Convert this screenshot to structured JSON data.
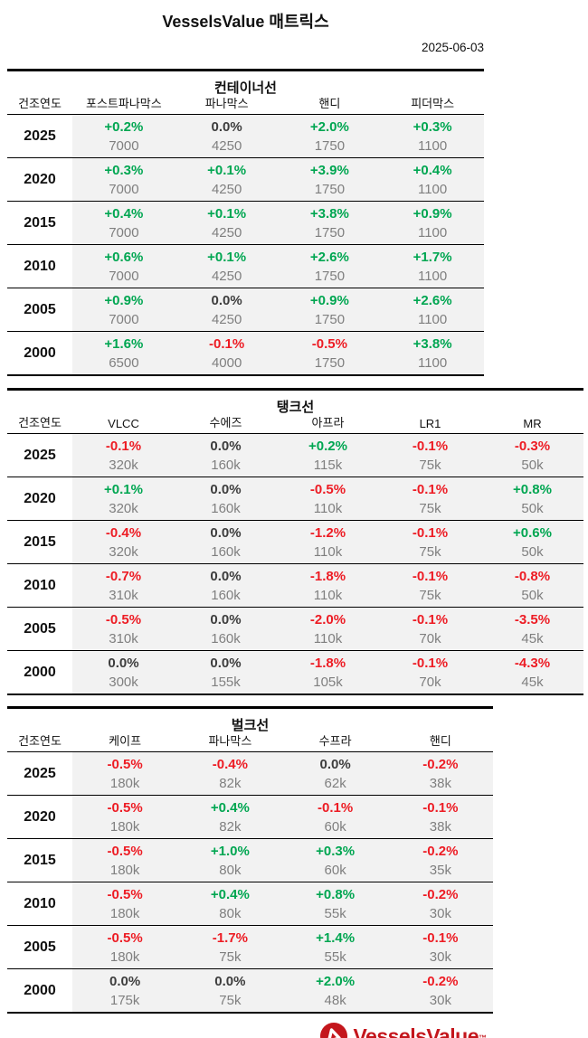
{
  "title": "VesselsValue 매트릭스",
  "date": "2025-06-03",
  "year_header": "건조연도",
  "colors": {
    "positive": "#00a651",
    "negative": "#ed1c24",
    "neutral": "#3d3d3d",
    "value_gray": "#7f7f7f",
    "row_band": "#f2f2f2",
    "brand_red": "#c4161c"
  },
  "sections": [
    {
      "title": "컨테이너선",
      "columns": [
        "포스트파나막스",
        "파나막스",
        "핸디",
        "피더막스"
      ],
      "rows": [
        {
          "year": "2025",
          "cells": [
            {
              "pct": "+0.2%",
              "value": "7000"
            },
            {
              "pct": "0.0%",
              "value": "4250"
            },
            {
              "pct": "+2.0%",
              "value": "1750"
            },
            {
              "pct": "+0.3%",
              "value": "1100"
            }
          ]
        },
        {
          "year": "2020",
          "cells": [
            {
              "pct": "+0.3%",
              "value": "7000"
            },
            {
              "pct": "+0.1%",
              "value": "4250"
            },
            {
              "pct": "+3.9%",
              "value": "1750"
            },
            {
              "pct": "+0.4%",
              "value": "1100"
            }
          ]
        },
        {
          "year": "2015",
          "cells": [
            {
              "pct": "+0.4%",
              "value": "7000"
            },
            {
              "pct": "+0.1%",
              "value": "4250"
            },
            {
              "pct": "+3.8%",
              "value": "1750"
            },
            {
              "pct": "+0.9%",
              "value": "1100"
            }
          ]
        },
        {
          "year": "2010",
          "cells": [
            {
              "pct": "+0.6%",
              "value": "7000"
            },
            {
              "pct": "+0.1%",
              "value": "4250"
            },
            {
              "pct": "+2.6%",
              "value": "1750"
            },
            {
              "pct": "+1.7%",
              "value": "1100"
            }
          ]
        },
        {
          "year": "2005",
          "cells": [
            {
              "pct": "+0.9%",
              "value": "7000"
            },
            {
              "pct": "0.0%",
              "value": "4250"
            },
            {
              "pct": "+0.9%",
              "value": "1750"
            },
            {
              "pct": "+2.6%",
              "value": "1100"
            }
          ]
        },
        {
          "year": "2000",
          "cells": [
            {
              "pct": "+1.6%",
              "value": "6500"
            },
            {
              "pct": "-0.1%",
              "value": "4000"
            },
            {
              "pct": "-0.5%",
              "value": "1750"
            },
            {
              "pct": "+3.8%",
              "value": "1100"
            }
          ]
        }
      ]
    },
    {
      "title": "탱크선",
      "columns": [
        "VLCC",
        "수에즈",
        "아프라",
        "LR1",
        "MR"
      ],
      "rows": [
        {
          "year": "2025",
          "cells": [
            {
              "pct": "-0.1%",
              "value": "320k"
            },
            {
              "pct": "0.0%",
              "value": "160k"
            },
            {
              "pct": "+0.2%",
              "value": "115k"
            },
            {
              "pct": "-0.1%",
              "value": "75k"
            },
            {
              "pct": "-0.3%",
              "value": "50k"
            }
          ]
        },
        {
          "year": "2020",
          "cells": [
            {
              "pct": "+0.1%",
              "value": "320k"
            },
            {
              "pct": "0.0%",
              "value": "160k"
            },
            {
              "pct": "-0.5%",
              "value": "110k"
            },
            {
              "pct": "-0.1%",
              "value": "75k"
            },
            {
              "pct": "+0.8%",
              "value": "50k"
            }
          ]
        },
        {
          "year": "2015",
          "cells": [
            {
              "pct": "-0.4%",
              "value": "320k"
            },
            {
              "pct": "0.0%",
              "value": "160k"
            },
            {
              "pct": "-1.2%",
              "value": "110k"
            },
            {
              "pct": "-0.1%",
              "value": "75k"
            },
            {
              "pct": "+0.6%",
              "value": "50k"
            }
          ]
        },
        {
          "year": "2010",
          "cells": [
            {
              "pct": "-0.7%",
              "value": "310k"
            },
            {
              "pct": "0.0%",
              "value": "160k"
            },
            {
              "pct": "-1.8%",
              "value": "110k"
            },
            {
              "pct": "-0.1%",
              "value": "75k"
            },
            {
              "pct": "-0.8%",
              "value": "50k"
            }
          ]
        },
        {
          "year": "2005",
          "cells": [
            {
              "pct": "-0.5%",
              "value": "310k"
            },
            {
              "pct": "0.0%",
              "value": "160k"
            },
            {
              "pct": "-2.0%",
              "value": "110k"
            },
            {
              "pct": "-0.1%",
              "value": "70k"
            },
            {
              "pct": "-3.5%",
              "value": "45k"
            }
          ]
        },
        {
          "year": "2000",
          "cells": [
            {
              "pct": "0.0%",
              "value": "300k"
            },
            {
              "pct": "0.0%",
              "value": "155k"
            },
            {
              "pct": "-1.8%",
              "value": "105k"
            },
            {
              "pct": "-0.1%",
              "value": "70k"
            },
            {
              "pct": "-4.3%",
              "value": "45k"
            }
          ]
        }
      ]
    },
    {
      "title": "벌크선",
      "columns": [
        "케이프",
        "파나막스",
        "수프라",
        "핸디"
      ],
      "rows": [
        {
          "year": "2025",
          "cells": [
            {
              "pct": "-0.5%",
              "value": "180k"
            },
            {
              "pct": "-0.4%",
              "value": "82k"
            },
            {
              "pct": "0.0%",
              "value": "62k"
            },
            {
              "pct": "-0.2%",
              "value": "38k"
            }
          ]
        },
        {
          "year": "2020",
          "cells": [
            {
              "pct": "-0.5%",
              "value": "180k"
            },
            {
              "pct": "+0.4%",
              "value": "82k"
            },
            {
              "pct": "-0.1%",
              "value": "60k"
            },
            {
              "pct": "-0.1%",
              "value": "38k"
            }
          ]
        },
        {
          "year": "2015",
          "cells": [
            {
              "pct": "-0.5%",
              "value": "180k"
            },
            {
              "pct": "+1.0%",
              "value": "80k"
            },
            {
              "pct": "+0.3%",
              "value": "60k"
            },
            {
              "pct": "-0.2%",
              "value": "35k"
            }
          ]
        },
        {
          "year": "2010",
          "cells": [
            {
              "pct": "-0.5%",
              "value": "180k"
            },
            {
              "pct": "+0.4%",
              "value": "80k"
            },
            {
              "pct": "+0.8%",
              "value": "55k"
            },
            {
              "pct": "-0.2%",
              "value": "30k"
            }
          ]
        },
        {
          "year": "2005",
          "cells": [
            {
              "pct": "-0.5%",
              "value": "180k"
            },
            {
              "pct": "-1.7%",
              "value": "75k"
            },
            {
              "pct": "+1.4%",
              "value": "55k"
            },
            {
              "pct": "-0.1%",
              "value": "30k"
            }
          ]
        },
        {
          "year": "2000",
          "cells": [
            {
              "pct": "0.0%",
              "value": "175k"
            },
            {
              "pct": "0.0%",
              "value": "75k"
            },
            {
              "pct": "+2.0%",
              "value": "48k"
            },
            {
              "pct": "-0.2%",
              "value": "30k"
            }
          ]
        }
      ]
    }
  ],
  "footer": {
    "logo_text": "VesselsValue",
    "tm": "™"
  }
}
